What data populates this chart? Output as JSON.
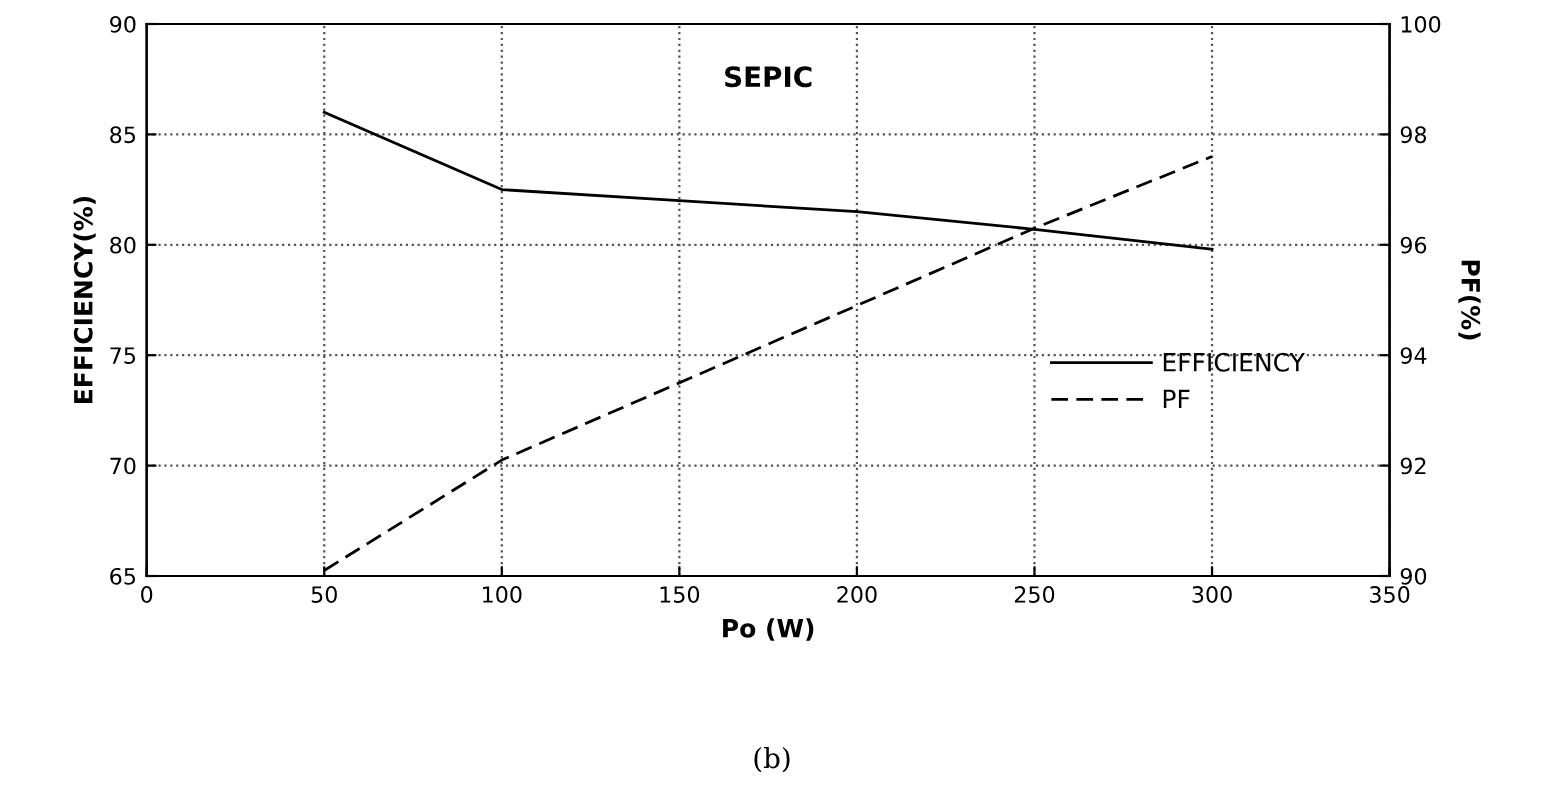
{
  "chart_data": {
    "type": "line",
    "xlabel": "Po (W)",
    "ylabel": "EFFICIENCY(%)",
    "y2label": "PF(%)",
    "annotations": [
      "SEPIC",
      "(b)"
    ],
    "series": [
      {
        "name": "EFFICIENCY",
        "color": "#000000",
        "line_style": "solid",
        "x": [
          50,
          100,
          150,
          200,
          250,
          300
        ],
        "values": [
          86,
          82.5,
          82,
          81.5,
          80.7,
          79.8
        ]
      },
      {
        "name": "PF",
        "color": "#000000",
        "line_style": "dashed",
        "axis": "y2",
        "x": [
          50,
          100,
          200,
          250,
          300
        ],
        "values": [
          90.1,
          92.1,
          94.9,
          96.3,
          97.6
        ]
      }
    ],
    "xlim": [
      0,
      350
    ],
    "xticks": [
      0,
      50,
      100,
      150,
      200,
      250,
      300,
      350
    ],
    "ylim": [
      65,
      90
    ],
    "yticks": [
      65,
      70,
      75,
      80,
      85,
      90
    ],
    "y2lim": [
      90,
      100
    ],
    "y2ticks": [
      90,
      92,
      94,
      96,
      98,
      100
    ],
    "grid": true,
    "legend": "right",
    "marker": "none"
  }
}
